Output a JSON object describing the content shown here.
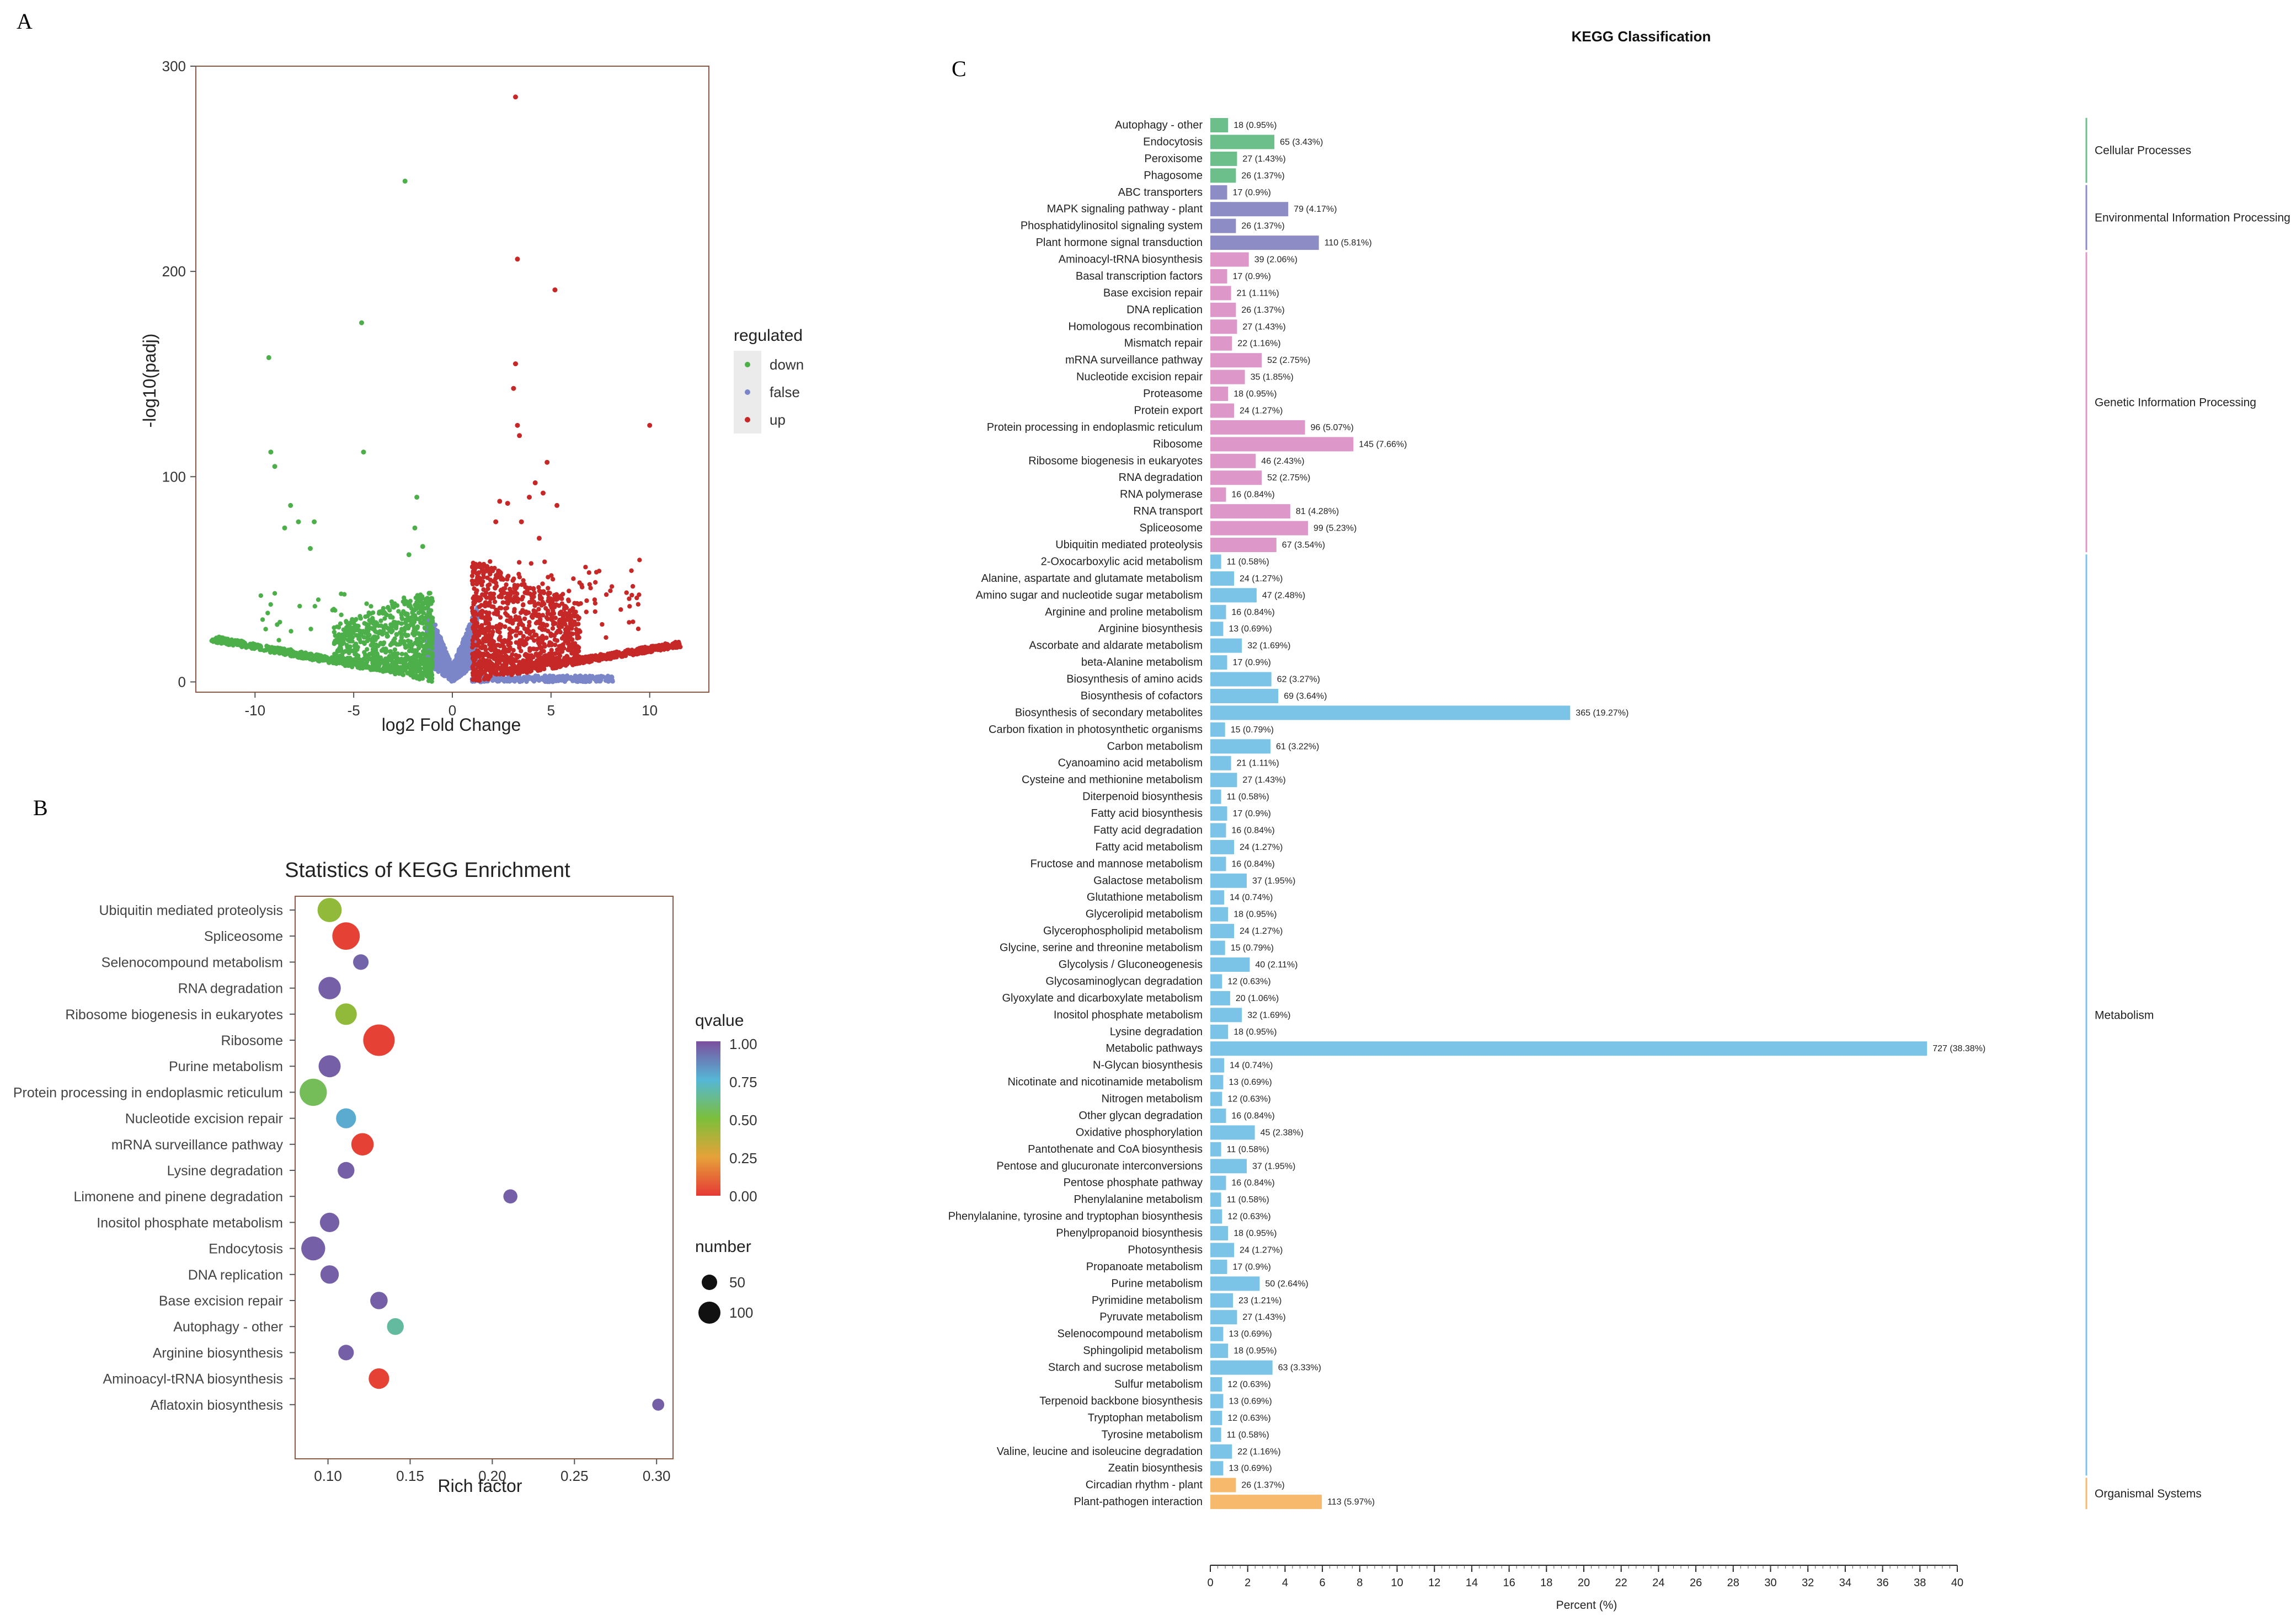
{
  "panels": {
    "a": "A",
    "b": "B",
    "c": "C"
  },
  "chart_data": [
    {
      "type": "scatter",
      "id": "volcano",
      "xlabel": "log2 Fold Change",
      "ylabel": "-log10(padj)",
      "xlim": [
        -13,
        13
      ],
      "ylim": [
        -5,
        300
      ],
      "xticks": [
        -10,
        -5,
        0,
        5,
        10
      ],
      "yticks": [
        0,
        100,
        200,
        300
      ],
      "legend": {
        "title": "regulated",
        "position": "right"
      },
      "series": [
        {
          "name": "down",
          "color": "#4daf4a"
        },
        {
          "name": "false",
          "color": "#7b86c9"
        },
        {
          "name": "up",
          "color": "#c62828"
        }
      ],
      "points": {
        "down": [
          [
            -9.3,
            158
          ],
          [
            -9.2,
            112
          ],
          [
            -9.0,
            105
          ],
          [
            -8.5,
            75
          ],
          [
            -8.2,
            86
          ],
          [
            -7.8,
            78
          ],
          [
            -7.0,
            78
          ],
          [
            -7.2,
            65
          ],
          [
            -4.6,
            175
          ],
          [
            -4.5,
            112
          ],
          [
            -2.4,
            244
          ],
          [
            -1.8,
            90
          ],
          [
            -1.9,
            75
          ],
          [
            -1.5,
            66
          ],
          [
            -2.2,
            62
          ]
        ],
        "false": [],
        "up": [
          [
            3.2,
            285
          ],
          [
            3.3,
            206
          ],
          [
            5.2,
            191
          ],
          [
            3.2,
            155
          ],
          [
            3.1,
            143
          ],
          [
            3.3,
            125
          ],
          [
            3.4,
            120
          ],
          [
            10.0,
            125
          ],
          [
            4.8,
            107
          ],
          [
            4.6,
            92
          ],
          [
            4.2,
            97
          ],
          [
            3.9,
            90
          ],
          [
            2.4,
            88
          ],
          [
            5.3,
            86
          ],
          [
            2.8,
            87
          ],
          [
            3.5,
            78
          ],
          [
            2.2,
            78
          ],
          [
            4.4,
            70
          ]
        ]
      }
    },
    {
      "type": "scatter",
      "id": "kegg-enrichment",
      "title": "Statistics of KEGG Enrichment",
      "xlabel": "Rich factor",
      "ylabel": "",
      "xlim": [
        0.08,
        0.31
      ],
      "xticks": [
        0.1,
        0.15,
        0.2,
        0.25,
        0.3
      ],
      "legend": {
        "position": "right",
        "color_title": "qvalue",
        "color_ticks": [
          "1.00",
          "0.75",
          "0.50",
          "0.25",
          "0.00"
        ],
        "size_title": "number",
        "size_ticks": [
          50,
          100
        ]
      },
      "pathways": [
        {
          "name": "Ubiquitin mediated proteolysis",
          "rich": 0.101,
          "qvalue": 0.45,
          "number": 67
        },
        {
          "name": "Spliceosome",
          "rich": 0.111,
          "qvalue": 0.02,
          "number": 99
        },
        {
          "name": "Selenocompound metabolism",
          "rich": 0.12,
          "qvalue": 0.95,
          "number": 13
        },
        {
          "name": "RNA degradation",
          "rich": 0.101,
          "qvalue": 0.96,
          "number": 52
        },
        {
          "name": "Ribosome biogenesis in eukaryotes",
          "rich": 0.111,
          "qvalue": 0.45,
          "number": 46
        },
        {
          "name": "Ribosome",
          "rich": 0.131,
          "qvalue": 0.02,
          "number": 145
        },
        {
          "name": "Purine metabolism",
          "rich": 0.101,
          "qvalue": 0.96,
          "number": 50
        },
        {
          "name": "Protein processing in endoplasmic reticulum",
          "rich": 0.091,
          "qvalue": 0.55,
          "number": 96
        },
        {
          "name": "Nucleotide excision repair",
          "rich": 0.111,
          "qvalue": 0.78,
          "number": 35
        },
        {
          "name": "mRNA surveillance pathway",
          "rich": 0.121,
          "qvalue": 0.02,
          "number": 52
        },
        {
          "name": "Lysine degradation",
          "rich": 0.111,
          "qvalue": 0.96,
          "number": 18
        },
        {
          "name": "Limonene and pinene degradation",
          "rich": 0.211,
          "qvalue": 0.96,
          "number": 8
        },
        {
          "name": "Inositol phosphate metabolism",
          "rich": 0.101,
          "qvalue": 0.96,
          "number": 32
        },
        {
          "name": "Endocytosis",
          "rich": 0.091,
          "qvalue": 0.96,
          "number": 65
        },
        {
          "name": "DNA replication",
          "rich": 0.101,
          "qvalue": 0.96,
          "number": 26
        },
        {
          "name": "Base excision repair",
          "rich": 0.131,
          "qvalue": 0.96,
          "number": 21
        },
        {
          "name": "Autophagy - other",
          "rich": 0.141,
          "qvalue": 0.66,
          "number": 18
        },
        {
          "name": "Arginine biosynthesis",
          "rich": 0.111,
          "qvalue": 0.96,
          "number": 13
        },
        {
          "name": "Aminoacyl-tRNA biosynthesis",
          "rich": 0.131,
          "qvalue": 0.02,
          "number": 39
        },
        {
          "name": "Aflatoxin biosynthesis",
          "rich": 0.301,
          "qvalue": 0.96,
          "number": 3
        }
      ]
    },
    {
      "type": "bar",
      "id": "kegg-classification",
      "title": "KEGG Classification",
      "xlabel": "Percent (%)",
      "xlim": [
        0,
        40
      ],
      "xticks": [
        0,
        2,
        4,
        6,
        8,
        10,
        12,
        14,
        16,
        18,
        20,
        22,
        24,
        26,
        28,
        30,
        32,
        34,
        36,
        38,
        40
      ],
      "groups": [
        {
          "name": "Cellular Processes",
          "color": "#6cbf8a",
          "categories": [
            {
              "name": "Autophagy - other",
              "count": 18,
              "percent": 0.95
            },
            {
              "name": "Endocytosis",
              "count": 65,
              "percent": 3.43
            },
            {
              "name": "Peroxisome",
              "count": 27,
              "percent": 1.43
            },
            {
              "name": "Phagosome",
              "count": 26,
              "percent": 1.37
            }
          ]
        },
        {
          "name": "Environmental Information Processing",
          "color": "#8e8cc4",
          "categories": [
            {
              "name": "ABC transporters",
              "count": 17,
              "percent": 0.9
            },
            {
              "name": "MAPK signaling pathway - plant",
              "count": 79,
              "percent": 4.17
            },
            {
              "name": "Phosphatidylinositol signaling system",
              "count": 26,
              "percent": 1.37
            },
            {
              "name": "Plant hormone signal transduction",
              "count": 110,
              "percent": 5.81
            }
          ]
        },
        {
          "name": "Genetic Information Processing",
          "color": "#dd98c9",
          "categories": [
            {
              "name": "Aminoacyl-tRNA biosynthesis",
              "count": 39,
              "percent": 2.06
            },
            {
              "name": "Basal transcription factors",
              "count": 17,
              "percent": 0.9
            },
            {
              "name": "Base excision repair",
              "count": 21,
              "percent": 1.11
            },
            {
              "name": "DNA replication",
              "count": 26,
              "percent": 1.37
            },
            {
              "name": "Homologous recombination",
              "count": 27,
              "percent": 1.43
            },
            {
              "name": "Mismatch repair",
              "count": 22,
              "percent": 1.16
            },
            {
              "name": "mRNA surveillance pathway",
              "count": 52,
              "percent": 2.75
            },
            {
              "name": "Nucleotide excision repair",
              "count": 35,
              "percent": 1.85
            },
            {
              "name": "Proteasome",
              "count": 18,
              "percent": 0.95
            },
            {
              "name": "Protein export",
              "count": 24,
              "percent": 1.27
            },
            {
              "name": "Protein processing in endoplasmic reticulum",
              "count": 96,
              "percent": 5.07
            },
            {
              "name": "Ribosome",
              "count": 145,
              "percent": 7.66
            },
            {
              "name": "Ribosome biogenesis in eukaryotes",
              "count": 46,
              "percent": 2.43
            },
            {
              "name": "RNA degradation",
              "count": 52,
              "percent": 2.75
            },
            {
              "name": "RNA polymerase",
              "count": 16,
              "percent": 0.84
            },
            {
              "name": "RNA transport",
              "count": 81,
              "percent": 4.28
            },
            {
              "name": "Spliceosome",
              "count": 99,
              "percent": 5.23
            },
            {
              "name": "Ubiquitin mediated proteolysis",
              "count": 67,
              "percent": 3.54
            }
          ]
        },
        {
          "name": "Metabolism",
          "color": "#7cc3e8",
          "categories": [
            {
              "name": "2-Oxocarboxylic acid metabolism",
              "count": 11,
              "percent": 0.58
            },
            {
              "name": "Alanine, aspartate and glutamate metabolism",
              "count": 24,
              "percent": 1.27
            },
            {
              "name": "Amino sugar and nucleotide sugar metabolism",
              "count": 47,
              "percent": 2.48
            },
            {
              "name": "Arginine and proline metabolism",
              "count": 16,
              "percent": 0.84
            },
            {
              "name": "Arginine biosynthesis",
              "count": 13,
              "percent": 0.69
            },
            {
              "name": "Ascorbate and aldarate metabolism",
              "count": 32,
              "percent": 1.69
            },
            {
              "name": "beta-Alanine metabolism",
              "count": 17,
              "percent": 0.9
            },
            {
              "name": "Biosynthesis of amino acids",
              "count": 62,
              "percent": 3.27
            },
            {
              "name": "Biosynthesis of cofactors",
              "count": 69,
              "percent": 3.64
            },
            {
              "name": "Biosynthesis of secondary metabolites",
              "count": 365,
              "percent": 19.27
            },
            {
              "name": "Carbon fixation in photosynthetic organisms",
              "count": 15,
              "percent": 0.79
            },
            {
              "name": "Carbon metabolism",
              "count": 61,
              "percent": 3.22
            },
            {
              "name": "Cyanoamino acid metabolism",
              "count": 21,
              "percent": 1.11
            },
            {
              "name": "Cysteine and methionine metabolism",
              "count": 27,
              "percent": 1.43
            },
            {
              "name": "Diterpenoid biosynthesis",
              "count": 11,
              "percent": 0.58
            },
            {
              "name": "Fatty acid biosynthesis",
              "count": 17,
              "percent": 0.9
            },
            {
              "name": "Fatty acid degradation",
              "count": 16,
              "percent": 0.84
            },
            {
              "name": "Fatty acid metabolism",
              "count": 24,
              "percent": 1.27
            },
            {
              "name": "Fructose and mannose metabolism",
              "count": 16,
              "percent": 0.84
            },
            {
              "name": "Galactose metabolism",
              "count": 37,
              "percent": 1.95
            },
            {
              "name": "Glutathione metabolism",
              "count": 14,
              "percent": 0.74
            },
            {
              "name": "Glycerolipid metabolism",
              "count": 18,
              "percent": 0.95
            },
            {
              "name": "Glycerophospholipid metabolism",
              "count": 24,
              "percent": 1.27
            },
            {
              "name": "Glycine, serine and threonine metabolism",
              "count": 15,
              "percent": 0.79
            },
            {
              "name": "Glycolysis / Gluconeogenesis",
              "count": 40,
              "percent": 2.11
            },
            {
              "name": "Glycosaminoglycan degradation",
              "count": 12,
              "percent": 0.63
            },
            {
              "name": "Glyoxylate and dicarboxylate metabolism",
              "count": 20,
              "percent": 1.06
            },
            {
              "name": "Inositol phosphate metabolism",
              "count": 32,
              "percent": 1.69
            },
            {
              "name": "Lysine degradation",
              "count": 18,
              "percent": 0.95
            },
            {
              "name": "Metabolic pathways",
              "count": 727,
              "percent": 38.38
            },
            {
              "name": "N-Glycan biosynthesis",
              "count": 14,
              "percent": 0.74
            },
            {
              "name": "Nicotinate and nicotinamide metabolism",
              "count": 13,
              "percent": 0.69
            },
            {
              "name": "Nitrogen metabolism",
              "count": 12,
              "percent": 0.63
            },
            {
              "name": "Other glycan degradation",
              "count": 16,
              "percent": 0.84
            },
            {
              "name": "Oxidative phosphorylation",
              "count": 45,
              "percent": 2.38
            },
            {
              "name": "Pantothenate and CoA biosynthesis",
              "count": 11,
              "percent": 0.58
            },
            {
              "name": "Pentose and glucuronate interconversions",
              "count": 37,
              "percent": 1.95
            },
            {
              "name": "Pentose phosphate pathway",
              "count": 16,
              "percent": 0.84
            },
            {
              "name": "Phenylalanine metabolism",
              "count": 11,
              "percent": 0.58
            },
            {
              "name": "Phenylalanine, tyrosine and tryptophan biosynthesis",
              "count": 12,
              "percent": 0.63
            },
            {
              "name": "Phenylpropanoid biosynthesis",
              "count": 18,
              "percent": 0.95
            },
            {
              "name": "Photosynthesis",
              "count": 24,
              "percent": 1.27
            },
            {
              "name": "Propanoate metabolism",
              "count": 17,
              "percent": 0.9
            },
            {
              "name": "Purine metabolism",
              "count": 50,
              "percent": 2.64
            },
            {
              "name": "Pyrimidine metabolism",
              "count": 23,
              "percent": 1.21
            },
            {
              "name": "Pyruvate metabolism",
              "count": 27,
              "percent": 1.43
            },
            {
              "name": "Selenocompound metabolism",
              "count": 13,
              "percent": 0.69
            },
            {
              "name": "Sphingolipid metabolism",
              "count": 18,
              "percent": 0.95
            },
            {
              "name": "Starch and sucrose metabolism",
              "count": 63,
              "percent": 3.33
            },
            {
              "name": "Sulfur metabolism",
              "count": 12,
              "percent": 0.63
            },
            {
              "name": "Terpenoid backbone biosynthesis",
              "count": 13,
              "percent": 0.69
            },
            {
              "name": "Tryptophan metabolism",
              "count": 12,
              "percent": 0.63
            },
            {
              "name": "Tyrosine metabolism",
              "count": 11,
              "percent": 0.58
            },
            {
              "name": "Valine, leucine and isoleucine degradation",
              "count": 22,
              "percent": 1.16
            },
            {
              "name": "Zeatin biosynthesis",
              "count": 13,
              "percent": 0.69
            }
          ]
        },
        {
          "name": "Organismal Systems",
          "color": "#f7b96b",
          "categories": [
            {
              "name": "Circadian rhythm - plant",
              "count": 26,
              "percent": 1.37
            },
            {
              "name": "Plant-pathogen interaction",
              "count": 113,
              "percent": 5.97
            }
          ]
        }
      ]
    }
  ]
}
